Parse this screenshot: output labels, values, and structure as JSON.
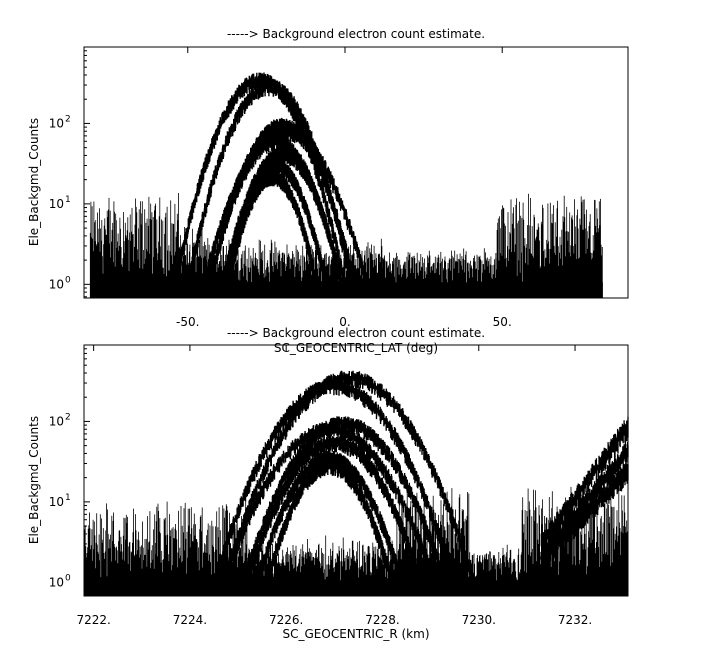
{
  "colors": {
    "background": "#ffffff",
    "ink": "#000000"
  },
  "chart_data": [
    {
      "type": "scatter",
      "title": "-----> Background electron count estimate.",
      "xlabel": "SC_GEOCENTRIC_LAT (deg)",
      "ylabel": "Ele_Backgmd_Counts",
      "xlim": [
        -83,
        90
      ],
      "ylim_log10": [
        -0.17,
        2.95
      ],
      "yscale": "log",
      "xticks": [
        -50,
        0,
        50
      ],
      "xtick_labels": [
        "-50.",
        "0.",
        "50."
      ],
      "yticks": [
        1,
        10,
        100
      ],
      "ytick_labels": [
        "10",
        "10",
        "10"
      ],
      "ytick_exponents": [
        "0",
        "1",
        "2"
      ],
      "x_data_range": [
        -81,
        82
      ],
      "noise_regions": [
        {
          "x": [
            -81,
            -52
          ],
          "peak": 14
        },
        {
          "x": [
            -52,
            -44
          ],
          "peak": 6
        },
        {
          "x": [
            -44,
            12
          ],
          "peak": 3
        },
        {
          "x": [
            12,
            48
          ],
          "peak": 2
        },
        {
          "x": [
            48,
            82
          ],
          "peak": 14
        }
      ],
      "series": [
        {
          "center": -27,
          "width": 27,
          "peak": 350
        },
        {
          "center": -24,
          "width": 26,
          "peak": 290
        },
        {
          "center": -20,
          "width": 23,
          "peak": 95
        },
        {
          "center": -19,
          "width": 26,
          "peak": 80
        },
        {
          "center": -22,
          "width": 21,
          "peak": 60
        },
        {
          "center": -20,
          "width": 19,
          "peak": 42
        },
        {
          "center": -22,
          "width": 16,
          "peak": 30
        },
        {
          "center": -23,
          "width": 14,
          "peak": 22
        }
      ]
    },
    {
      "type": "scatter",
      "title": "-----> Background electron count estimate.",
      "xlabel": "SC_GEOCENTRIC_R (km)",
      "ylabel": "Ele_Backgmd_Counts",
      "xlim": [
        7221.8,
        7233.1
      ],
      "ylim_log10": [
        -0.17,
        2.95
      ],
      "yscale": "log",
      "xticks": [
        7222,
        7224,
        7226,
        7228,
        7230,
        7232
      ],
      "xtick_labels": [
        "7222.",
        "7224.",
        "7226.",
        "7228.",
        "7230.",
        "7232."
      ],
      "yticks": [
        1,
        10,
        100
      ],
      "ytick_labels": [
        "10",
        "10",
        "10"
      ],
      "ytick_exponents": [
        "0",
        "1",
        "2"
      ],
      "x_data_range": [
        7221.8,
        7233.1
      ],
      "noise_regions": [
        {
          "x": [
            7221.8,
            7223.3
          ],
          "peak": 10
        },
        {
          "x": [
            7223.3,
            7225.2
          ],
          "peak": 12
        },
        {
          "x": [
            7225.2,
            7228.3
          ],
          "peak": 3
        },
        {
          "x": [
            7228.3,
            7229.8
          ],
          "peak": 16
        },
        {
          "x": [
            7229.8,
            7230.9
          ],
          "peak": 2
        },
        {
          "x": [
            7230.9,
            7233.1
          ],
          "peak": 16
        }
      ],
      "series": [
        {
          "center": 7227.3,
          "width": 2.6,
          "peak": 350
        },
        {
          "center": 7227.0,
          "width": 2.5,
          "peak": 280
        },
        {
          "center": 7227.2,
          "width": 2.1,
          "peak": 95
        },
        {
          "center": 7226.9,
          "width": 2.2,
          "peak": 80
        },
        {
          "center": 7227.0,
          "width": 1.8,
          "peak": 55
        },
        {
          "center": 7226.9,
          "width": 1.5,
          "peak": 35
        },
        {
          "center": 7226.9,
          "width": 1.3,
          "peak": 28
        }
      ],
      "rising_edge": {
        "x": [
          7231.3,
          7233.1
        ],
        "values": [
          [
            3,
            90
          ],
          [
            2,
            45
          ],
          [
            2,
            25
          ]
        ]
      }
    }
  ]
}
